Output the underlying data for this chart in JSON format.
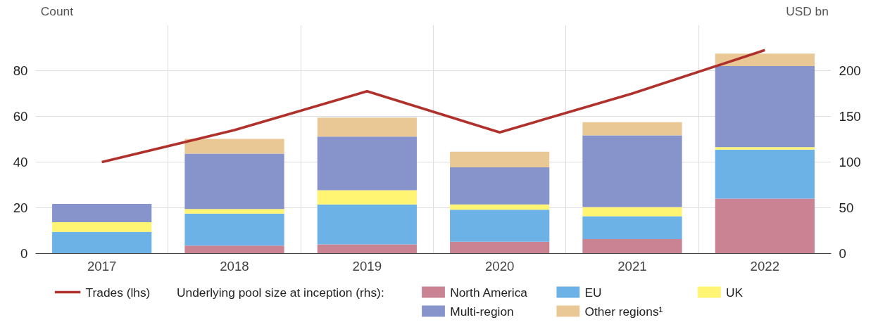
{
  "chart_data": {
    "type": "bar",
    "stacked": true,
    "categories": [
      "2017",
      "2018",
      "2019",
      "2020",
      "2021",
      "2022"
    ],
    "ylabel": "Count",
    "y2label": "USD bn",
    "legend_title": "Underlying pool size at inception (rhs):",
    "ylim": [
      0,
      100
    ],
    "yticks": [
      0,
      20,
      40,
      60,
      80
    ],
    "y2lim": [
      0,
      250
    ],
    "y2ticks": [
      0,
      50,
      100,
      150,
      200
    ],
    "grid": true,
    "legend": "bottom",
    "series": [
      {
        "name": "Trades (lhs)",
        "type": "line",
        "color": "#b0302c",
        "values": [
          40,
          54,
          71,
          53,
          70,
          89
        ]
      },
      {
        "name": "North America",
        "axis": "y2",
        "color": "#c98393",
        "values": [
          0,
          8.6,
          10,
          12.9,
          15.7,
          60
        ]
      },
      {
        "name": "EU",
        "axis": "y2",
        "color": "#6cb2e6",
        "values": [
          23.6,
          35,
          43.6,
          35,
          25,
          53.6
        ]
      },
      {
        "name": "UK",
        "axis": "y2",
        "color": "#fff572",
        "values": [
          10.7,
          5,
          15.7,
          5.7,
          10,
          2.8
        ]
      },
      {
        "name": "Multi-region",
        "axis": "y2",
        "color": "#8694cb",
        "values": [
          20,
          60.7,
          58.6,
          40.7,
          78.6,
          88.6
        ]
      },
      {
        "name": "Other regions¹",
        "axis": "y2",
        "color": "#e9c896",
        "values": [
          0,
          16,
          20.7,
          17.1,
          14.3,
          13.6
        ]
      }
    ]
  }
}
